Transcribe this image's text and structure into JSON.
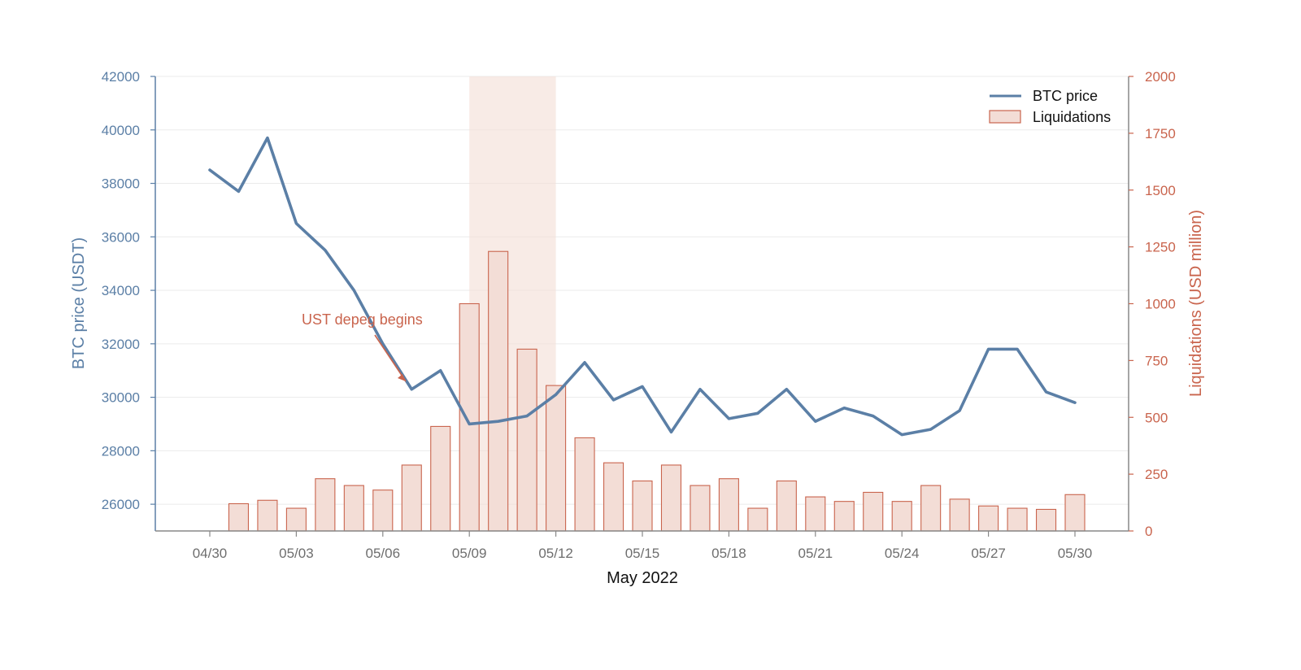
{
  "chart_data": {
    "type": "bar+line",
    "xlabel": "May 2022",
    "x_ticks": [
      "04/30",
      "05/03",
      "05/06",
      "05/09",
      "05/12",
      "05/15",
      "05/18",
      "05/21",
      "05/24",
      "05/27",
      "05/30"
    ],
    "x_dates": [
      "04/30",
      "05/01",
      "05/02",
      "05/03",
      "05/04",
      "05/05",
      "05/06",
      "05/07",
      "05/08",
      "05/09",
      "05/10",
      "05/11",
      "05/12",
      "05/13",
      "05/14",
      "05/15",
      "05/16",
      "05/17",
      "05/18",
      "05/19",
      "05/20",
      "05/21",
      "05/22",
      "05/23",
      "05/24",
      "05/25",
      "05/26",
      "05/27",
      "05/28",
      "05/29",
      "05/30"
    ],
    "left_axis": {
      "label": "BTC price (USDT)",
      "ylim": [
        25000,
        42000
      ],
      "ticks": [
        26000,
        28000,
        30000,
        32000,
        34000,
        36000,
        38000,
        40000,
        42000
      ]
    },
    "right_axis": {
      "label": "Liquidations (USD million)",
      "ylim": [
        0,
        2000
      ],
      "ticks": [
        0,
        250,
        500,
        750,
        1000,
        1250,
        1500,
        1750,
        2000
      ]
    },
    "series": [
      {
        "name": "BTC price",
        "type": "line",
        "axis": "left",
        "color": "#5b7fa6",
        "x": [
          "04/30",
          "05/01",
          "05/02",
          "05/03",
          "05/04",
          "05/05",
          "05/06",
          "05/07",
          "05/08",
          "05/09",
          "05/10",
          "05/11",
          "05/12",
          "05/13",
          "05/14",
          "05/15",
          "05/16",
          "05/17",
          "05/18",
          "05/19",
          "05/20",
          "05/21",
          "05/22",
          "05/23",
          "05/24",
          "05/25",
          "05/26",
          "05/27",
          "05/28",
          "05/29",
          "05/30"
        ],
        "values": [
          38500,
          37700,
          39700,
          36500,
          35500,
          34000,
          32000,
          30300,
          31000,
          29000,
          29100,
          29300,
          30100,
          31300,
          29900,
          30400,
          28700,
          30300,
          29200,
          29400,
          30300,
          29100,
          29600,
          29300,
          28600,
          28800,
          29500,
          31800,
          31800,
          30200,
          29800
        ]
      },
      {
        "name": "Liquidations",
        "type": "bar",
        "axis": "right",
        "color": "#f3ddd6",
        "edge_color": "#c9644d",
        "x": [
          "05/01",
          "05/02",
          "05/03",
          "05/04",
          "05/05",
          "05/06",
          "05/07",
          "05/08",
          "05/09",
          "05/10",
          "05/11",
          "05/12",
          "05/13",
          "05/14",
          "05/15",
          "05/16",
          "05/17",
          "05/18",
          "05/19",
          "05/20",
          "05/21",
          "05/22",
          "05/23",
          "05/24",
          "05/25",
          "05/26",
          "05/27",
          "05/28",
          "05/29",
          "05/30"
        ],
        "values": [
          120,
          135,
          100,
          230,
          200,
          180,
          290,
          460,
          1000,
          1230,
          800,
          640,
          410,
          300,
          220,
          290,
          200,
          230,
          100,
          220,
          150,
          130,
          170,
          130,
          200,
          140,
          110,
          100,
          95,
          160
        ]
      }
    ],
    "highlight_span": {
      "from": "05/09",
      "to": "05/12",
      "color": "#f3ddd6"
    },
    "annotation": {
      "text": "UST depeg begins",
      "x": "05/07",
      "y": 30300
    },
    "legend": {
      "position": "top-right",
      "entries": [
        "BTC price",
        "Liquidations"
      ]
    },
    "grid": "horizontal"
  }
}
